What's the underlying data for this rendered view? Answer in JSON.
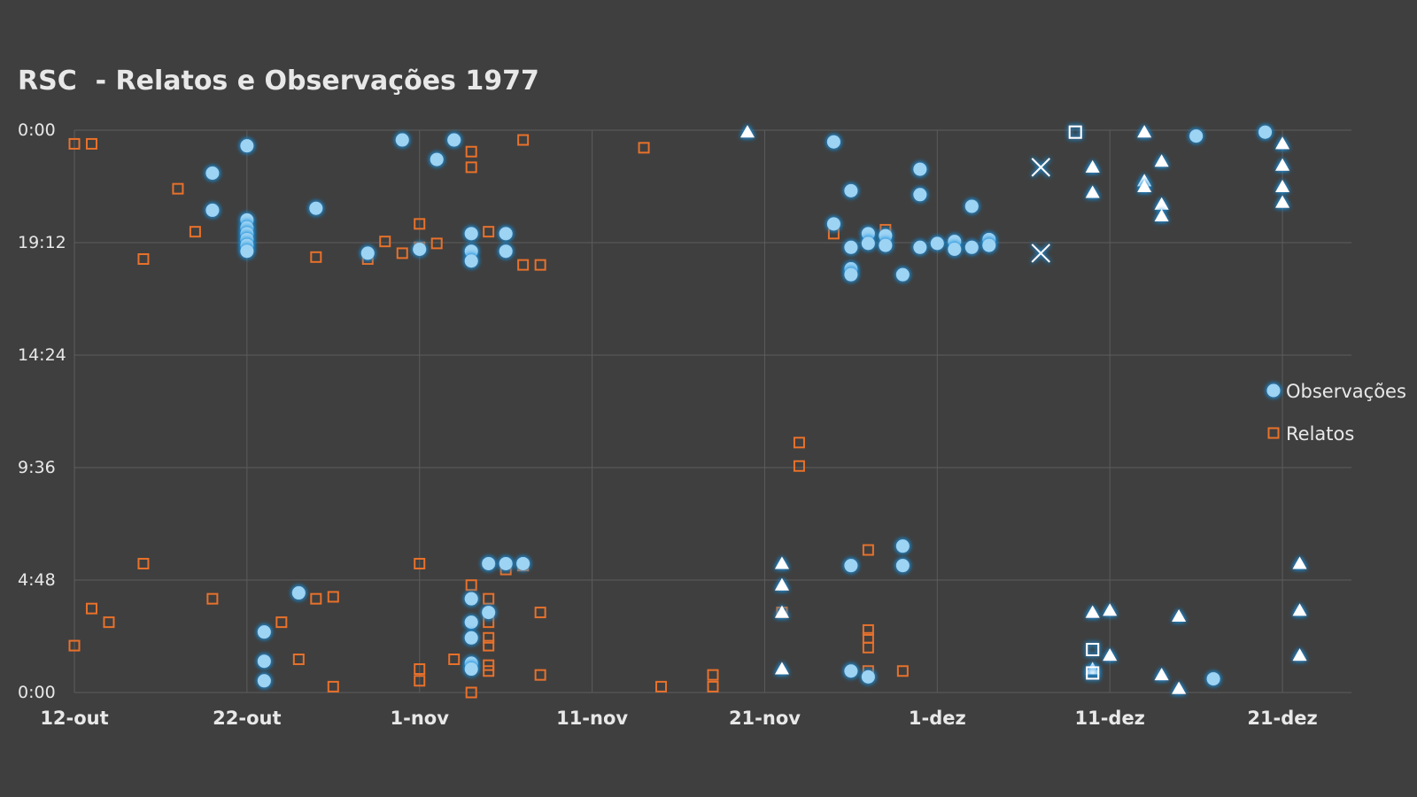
{
  "chart_data": {
    "type": "scatter",
    "title": "RSC  - Relatos e Observações 1977",
    "x_tick_labels": [
      "12-out",
      "22-out",
      "1-nov",
      "11-nov",
      "21-nov",
      "1-dez",
      "11-dez",
      "21-dez"
    ],
    "y_tick_labels": [
      "0:00",
      "4:48",
      "9:36",
      "14:24",
      "19:12",
      "0:00"
    ],
    "xlim": [
      "1977-10-12",
      "1977-12-25"
    ],
    "ylim": [
      "0:00",
      "24:00"
    ],
    "grid": true,
    "legend_position": "right",
    "colors": {
      "background": "#3f3f3f",
      "grid": "#5c5c5c",
      "text": "#e8e8e8",
      "observacoes": "#9dd3f3",
      "observacoes_glow": "#1f8fdc",
      "relatos": "#e8712b",
      "extra_markers": "#ffffff"
    },
    "series": [
      {
        "name": "Observações",
        "marker": "circle",
        "points": [
          [
            "1977-10-20",
            "20:35"
          ],
          [
            "1977-10-20",
            "22:10"
          ],
          [
            "1977-10-22",
            "23:20"
          ],
          [
            "1977-10-22",
            "20:10"
          ],
          [
            "1977-10-22",
            "19:50"
          ],
          [
            "1977-10-22",
            "19:35"
          ],
          [
            "1977-10-22",
            "19:20"
          ],
          [
            "1977-10-22",
            "19:05"
          ],
          [
            "1977-10-22",
            "18:50"
          ],
          [
            "1977-10-23",
            "2:35"
          ],
          [
            "1977-10-23",
            "1:20"
          ],
          [
            "1977-10-23",
            "0:30"
          ],
          [
            "1977-10-25",
            "4:15"
          ],
          [
            "1977-10-26",
            "20:40"
          ],
          [
            "1977-10-29",
            "18:45"
          ],
          [
            "1977-11-01",
            "18:55"
          ],
          [
            "1977-10-31",
            "23:35"
          ],
          [
            "1977-11-02",
            "22:45"
          ],
          [
            "1977-11-03",
            "23:35"
          ],
          [
            "1977-11-04",
            "19:35"
          ],
          [
            "1977-11-04",
            "18:50"
          ],
          [
            "1977-11-04",
            "18:25"
          ],
          [
            "1977-11-04",
            "4:00"
          ],
          [
            "1977-11-04",
            "3:00"
          ],
          [
            "1977-11-04",
            "2:20"
          ],
          [
            "1977-11-04",
            "1:15"
          ],
          [
            "1977-11-04",
            "1:00"
          ],
          [
            "1977-11-05",
            "5:30"
          ],
          [
            "1977-11-05",
            "3:25"
          ],
          [
            "1977-11-06",
            "5:30"
          ],
          [
            "1977-11-06",
            "19:35"
          ],
          [
            "1977-11-06",
            "18:50"
          ],
          [
            "1977-11-07",
            "5:30"
          ],
          [
            "1977-11-25",
            "23:30"
          ],
          [
            "1977-11-25",
            "20:00"
          ],
          [
            "1977-11-26",
            "21:25"
          ],
          [
            "1977-11-26",
            "19:00"
          ],
          [
            "1977-11-26",
            "18:05"
          ],
          [
            "1977-11-26",
            "17:50"
          ],
          [
            "1977-11-26",
            "5:25"
          ],
          [
            "1977-11-26",
            "0:55"
          ],
          [
            "1977-11-27",
            "19:35"
          ],
          [
            "1977-11-27",
            "19:10"
          ],
          [
            "1977-11-27",
            "0:40"
          ],
          [
            "1977-11-28",
            "19:30"
          ],
          [
            "1977-11-28",
            "19:05"
          ],
          [
            "1977-11-29",
            "17:50"
          ],
          [
            "1977-11-29",
            "6:15"
          ],
          [
            "1977-11-29",
            "5:25"
          ],
          [
            "1977-11-30",
            "22:20"
          ],
          [
            "1977-11-30",
            "21:15"
          ],
          [
            "1977-11-30",
            "19:00"
          ],
          [
            "1977-12-01",
            "19:10"
          ],
          [
            "1977-12-02",
            "19:15"
          ],
          [
            "1977-12-02",
            "18:55"
          ],
          [
            "1977-12-03",
            "20:45"
          ],
          [
            "1977-12-03",
            "19:00"
          ],
          [
            "1977-12-04",
            "19:20"
          ],
          [
            "1977-12-04",
            "19:05"
          ],
          [
            "1977-12-17",
            "0:35"
          ],
          [
            "1977-12-16",
            "23:45"
          ],
          [
            "1977-12-20",
            "23:55"
          ]
        ]
      },
      {
        "name": "Relatos",
        "marker": "square",
        "points": [
          [
            "1977-10-12",
            "23:25"
          ],
          [
            "1977-10-13",
            "23:25"
          ],
          [
            "1977-10-12",
            "2:00"
          ],
          [
            "1977-10-13",
            "3:35"
          ],
          [
            "1977-10-14",
            "3:00"
          ],
          [
            "1977-10-16",
            "18:30"
          ],
          [
            "1977-10-16",
            "5:30"
          ],
          [
            "1977-10-18",
            "21:30"
          ],
          [
            "1977-10-19",
            "19:40"
          ],
          [
            "1977-10-20",
            "4:00"
          ],
          [
            "1977-10-24",
            "3:00"
          ],
          [
            "1977-10-25",
            "1:25"
          ],
          [
            "1977-10-26",
            "18:35"
          ],
          [
            "1977-10-26",
            "4:00"
          ],
          [
            "1977-10-27",
            "4:05"
          ],
          [
            "1977-10-27",
            "0:15"
          ],
          [
            "1977-10-29",
            "18:30"
          ],
          [
            "1977-10-30",
            "19:15"
          ],
          [
            "1977-10-31",
            "18:45"
          ],
          [
            "1977-11-01",
            "20:00"
          ],
          [
            "1977-11-01",
            "19:00"
          ],
          [
            "1977-11-01",
            "5:30"
          ],
          [
            "1977-11-01",
            "1:00"
          ],
          [
            "1977-11-01",
            "0:30"
          ],
          [
            "1977-11-02",
            "19:10"
          ],
          [
            "1977-11-03",
            "1:25"
          ],
          [
            "1977-11-04",
            "23:05"
          ],
          [
            "1977-11-04",
            "22:25"
          ],
          [
            "1977-11-04",
            "4:35"
          ],
          [
            "1977-11-04",
            "0:00"
          ],
          [
            "1977-11-05",
            "19:40"
          ],
          [
            "1977-11-05",
            "4:00"
          ],
          [
            "1977-11-05",
            "3:00"
          ],
          [
            "1977-11-05",
            "2:20"
          ],
          [
            "1977-11-05",
            "2:00"
          ],
          [
            "1977-11-05",
            "1:10"
          ],
          [
            "1977-11-05",
            "0:55"
          ],
          [
            "1977-11-06",
            "5:15"
          ],
          [
            "1977-11-07",
            "23:35"
          ],
          [
            "1977-11-07",
            "18:15"
          ],
          [
            "1977-11-07",
            "5:25"
          ],
          [
            "1977-11-08",
            "18:15"
          ],
          [
            "1977-11-08",
            "3:25"
          ],
          [
            "1977-11-08",
            "0:45"
          ],
          [
            "1977-11-14",
            "23:15"
          ],
          [
            "1977-11-15",
            "0:15"
          ],
          [
            "1977-11-18",
            "0:45"
          ],
          [
            "1977-11-18",
            "0:15"
          ],
          [
            "1977-11-22",
            "3:25"
          ],
          [
            "1977-11-23",
            "10:40"
          ],
          [
            "1977-11-23",
            "9:40"
          ],
          [
            "1977-11-25",
            "19:35"
          ],
          [
            "1977-11-27",
            "6:05"
          ],
          [
            "1977-11-27",
            "2:40"
          ],
          [
            "1977-11-27",
            "2:20"
          ],
          [
            "1977-11-27",
            "1:55"
          ],
          [
            "1977-11-27",
            "0:55"
          ],
          [
            "1977-11-28",
            "19:45"
          ],
          [
            "1977-11-28",
            "19:30"
          ],
          [
            "1977-11-28",
            "19:10"
          ],
          [
            "1977-11-29",
            "0:55"
          ]
        ]
      },
      {
        "marker": "triangle",
        "points": [
          [
            "1977-11-20",
            "23:55"
          ],
          [
            "1977-11-22",
            "5:30"
          ],
          [
            "1977-11-22",
            "4:35"
          ],
          [
            "1977-11-22",
            "3:25"
          ],
          [
            "1977-11-22",
            "1:00"
          ],
          [
            "1977-12-10",
            "22:25"
          ],
          [
            "1977-12-10",
            "21:20"
          ],
          [
            "1977-12-10",
            "3:25"
          ],
          [
            "1977-12-10",
            "1:00"
          ],
          [
            "1977-12-11",
            "3:30"
          ],
          [
            "1977-12-11",
            "1:35"
          ],
          [
            "1977-12-13",
            "23:55"
          ],
          [
            "1977-12-13",
            "21:50"
          ],
          [
            "1977-12-13",
            "21:35"
          ],
          [
            "1977-12-14",
            "22:40"
          ],
          [
            "1977-12-14",
            "20:50"
          ],
          [
            "1977-12-14",
            "20:20"
          ],
          [
            "1977-12-14",
            "0:45"
          ],
          [
            "1977-12-15",
            "3:15"
          ],
          [
            "1977-12-15",
            "0:10"
          ],
          [
            "1977-12-21",
            "23:25"
          ],
          [
            "1977-12-21",
            "22:30"
          ],
          [
            "1977-12-21",
            "21:35"
          ],
          [
            "1977-12-21",
            "20:55"
          ],
          [
            "1977-12-22",
            "5:30"
          ],
          [
            "1977-12-22",
            "3:30"
          ],
          [
            "1977-12-22",
            "1:35"
          ]
        ]
      },
      {
        "marker": "x",
        "points": [
          [
            "1977-12-07",
            "22:25"
          ],
          [
            "1977-12-07",
            "18:45"
          ]
        ]
      },
      {
        "marker": "square-white",
        "points": [
          [
            "1977-12-09",
            "23:55"
          ],
          [
            "1977-12-10",
            "1:50"
          ],
          [
            "1977-12-10",
            "0:50"
          ]
        ]
      }
    ]
  }
}
